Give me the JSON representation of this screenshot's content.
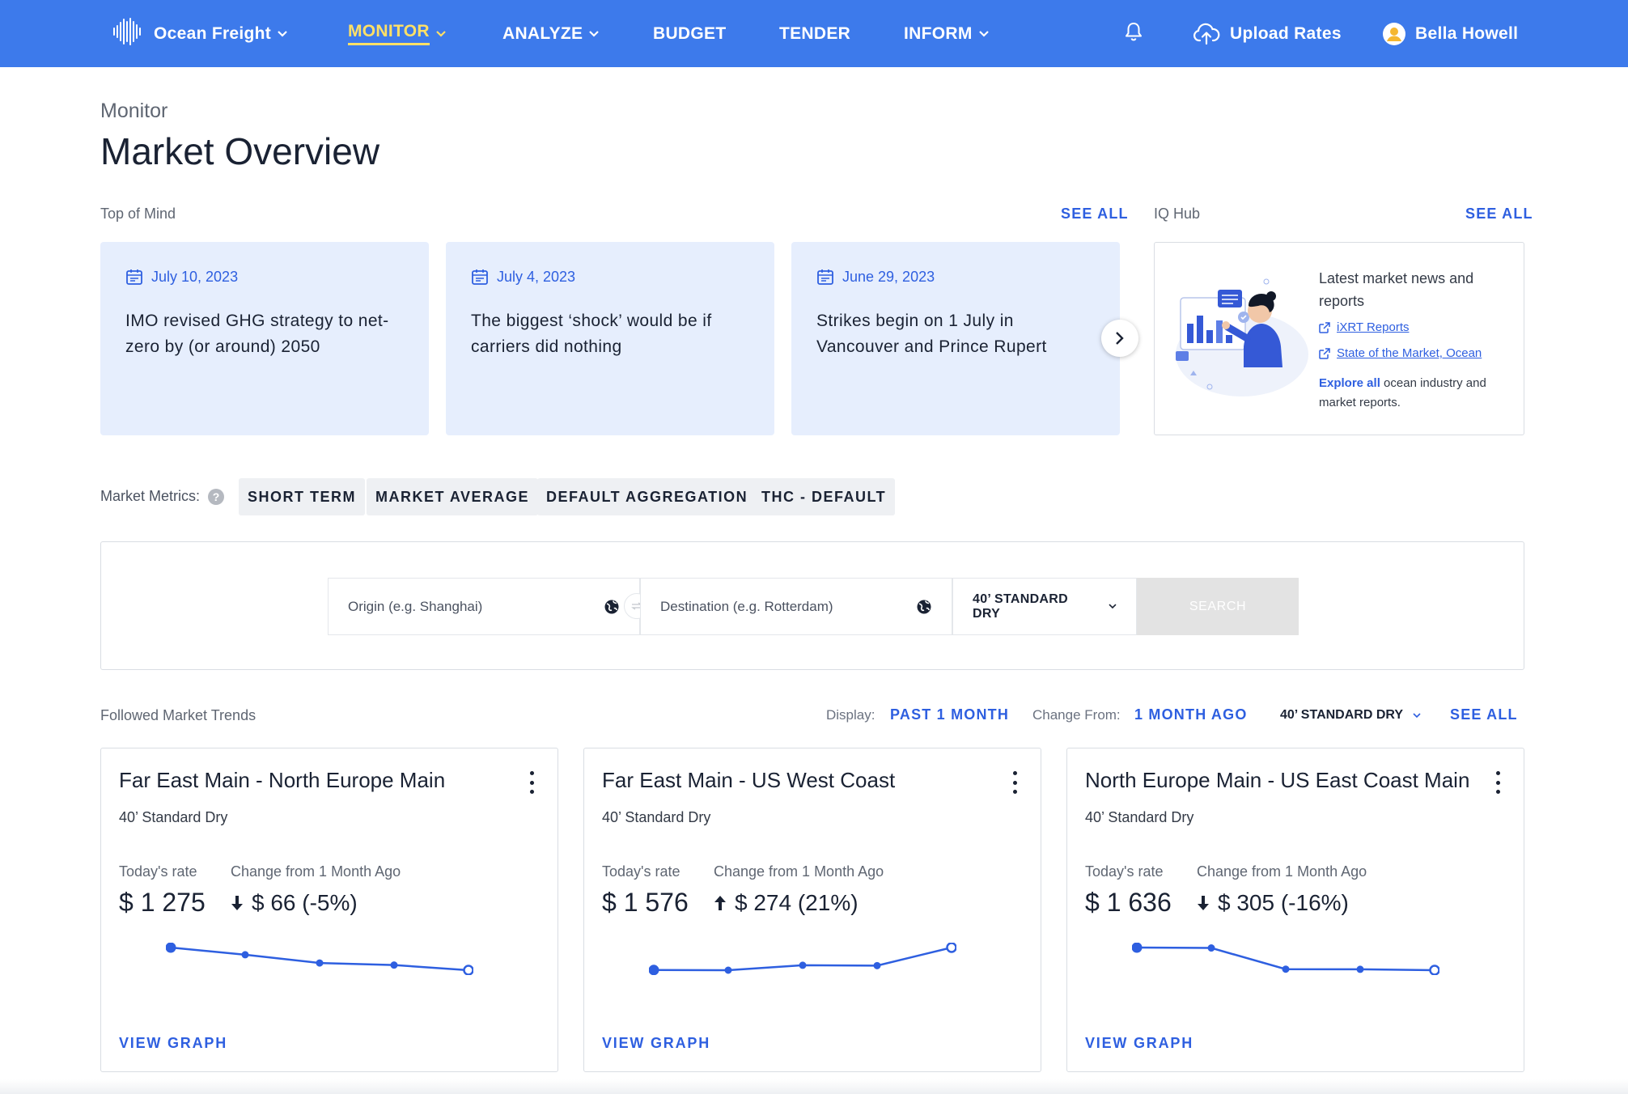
{
  "nav": {
    "brand": "Ocean Freight",
    "items": [
      {
        "label": "MONITOR",
        "active": true,
        "dropdown": true
      },
      {
        "label": "ANALYZE",
        "active": false,
        "dropdown": true
      },
      {
        "label": "BUDGET",
        "active": false,
        "dropdown": false
      },
      {
        "label": "TENDER",
        "active": false,
        "dropdown": false
      },
      {
        "label": "INFORM",
        "active": false,
        "dropdown": true
      }
    ],
    "upload_label": "Upload Rates",
    "user_name": "Bella Howell"
  },
  "page": {
    "breadcrumb": "Monitor",
    "title": "Market Overview"
  },
  "top_of_mind": {
    "label": "Top of Mind",
    "see_all": "SEE ALL",
    "cards": [
      {
        "date": "July 10, 2023",
        "title": "IMO revised GHG strategy to net-zero by (or around) 2050"
      },
      {
        "date": "July 4, 2023",
        "title": "The biggest ‘shock’ would be if carriers did nothing"
      },
      {
        "date": "June 29, 2023",
        "title": "Strikes begin on 1 July in Vancouver and Prince Rupert"
      }
    ]
  },
  "iq_hub": {
    "label": "IQ Hub",
    "see_all": "SEE ALL",
    "heading": "Latest market news and reports",
    "links": [
      "iXRT Reports",
      "State of the Market, Ocean"
    ],
    "explore_link": "Explore all",
    "explore_text": " ocean industry and market reports."
  },
  "market_metrics": {
    "label": "Market Metrics:",
    "help": "?",
    "chips": [
      "SHORT TERM",
      "MARKET AVERAGE",
      "DEFAULT AGGREGATION",
      "THC - DEFAULT"
    ]
  },
  "search": {
    "origin_placeholder": "Origin (e.g. Shanghai)",
    "destination_placeholder": "Destination (e.g. Rotterdam)",
    "container": "40’ STANDARD DRY",
    "button": "SEARCH"
  },
  "trends": {
    "label": "Followed Market Trends",
    "display_label": "Display:",
    "display_value": "PAST 1 MONTH",
    "change_label": "Change From:",
    "change_value": "1 MONTH AGO",
    "container": "40’ STANDARD DRY",
    "see_all": "SEE ALL",
    "cards": [
      {
        "route": "Far East Main - North Europe Main",
        "container": "40’ Standard Dry",
        "rate_label": "Today's rate",
        "change_label": "Change from 1 Month Ago",
        "rate": "$ 1 275",
        "change": "$ 66 (-5%)",
        "direction": "down",
        "series": [
          1341,
          1320,
          1296,
          1290,
          1275
        ],
        "view": "VIEW GRAPH"
      },
      {
        "route": "Far East Main - US West Coast",
        "container": "40’ Standard Dry",
        "rate_label": "Today's rate",
        "change_label": "Change from 1 Month Ago",
        "rate": "$ 1 576",
        "change": "$ 274 (21%)",
        "direction": "up",
        "series": [
          1302,
          1300,
          1360,
          1356,
          1576
        ],
        "view": "VIEW GRAPH"
      },
      {
        "route": "North Europe Main - US East Coast Main",
        "container": "40’ Standard Dry",
        "rate_label": "Today's rate",
        "change_label": "Change from 1 Month Ago",
        "rate": "$ 1 636",
        "change": "$ 305 (-16%)",
        "direction": "down",
        "series": [
          1941,
          1935,
          1650,
          1648,
          1636
        ],
        "view": "VIEW GRAPH"
      }
    ]
  },
  "colors": {
    "nav_bg": "#3d7aeb",
    "accent": "#2e5fe0",
    "active_nav": "#ffe066",
    "card_bg": "#e6eefd"
  }
}
